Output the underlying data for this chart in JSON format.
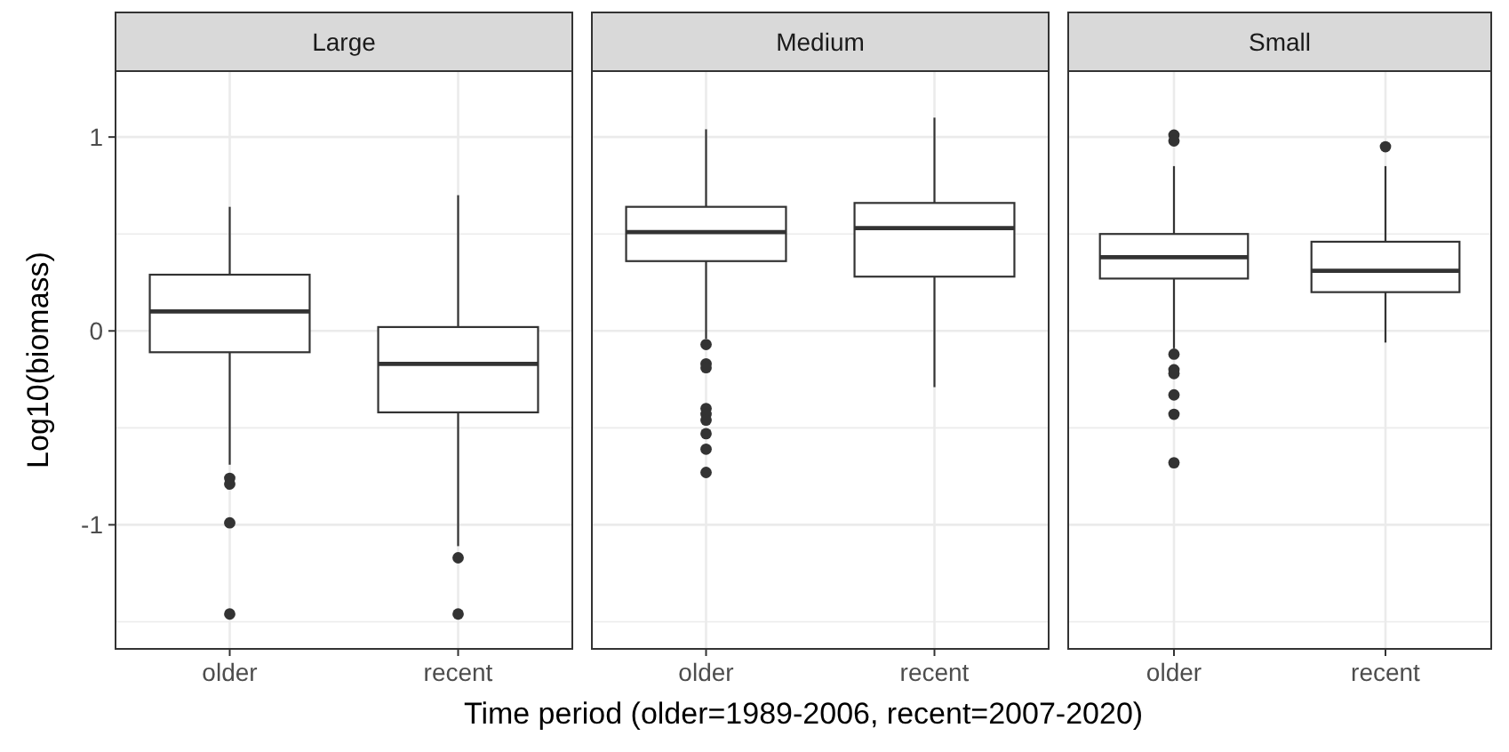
{
  "chart_data": [
    {
      "type": "box",
      "title": "Large",
      "ylabel": "Log10(biomass)",
      "categories": [
        "older",
        "recent"
      ],
      "ylim": [
        -1.64,
        1.34
      ],
      "yticks": [
        {
          "value": -1.5,
          "label": null
        },
        -1,
        {
          "value": -0.5,
          "label": null
        },
        0,
        {
          "value": 0.5,
          "label": null
        },
        1
      ],
      "grid": true,
      "boxes": [
        {
          "low": -0.69,
          "q1": -0.11,
          "median": 0.1,
          "q3": 0.29,
          "high": 0.64,
          "outliers": [
            -0.76,
            -0.79,
            -0.99,
            -1.46
          ]
        },
        {
          "low": -1.11,
          "q1": -0.42,
          "median": -0.17,
          "q3": 0.02,
          "high": 0.7,
          "outliers": [
            -1.17,
            -1.46
          ]
        }
      ]
    },
    {
      "type": "box",
      "title": "Medium",
      "xlabel": "Time period (older=1989-2006, recent=2007-2020)",
      "categories": [
        "older",
        "recent"
      ],
      "ylim": [
        -1.64,
        1.34
      ],
      "yticks": [
        {
          "value": -1.5,
          "label": null
        },
        -1,
        {
          "value": -0.5,
          "label": null
        },
        0,
        {
          "value": 0.5,
          "label": null
        },
        1
      ],
      "grid": true,
      "tick_labels": "x",
      "boxes": [
        {
          "low": -0.04,
          "q1": 0.36,
          "median": 0.51,
          "q3": 0.64,
          "high": 1.04,
          "outliers": [
            -0.07,
            -0.17,
            -0.19,
            -0.4,
            -0.43,
            -0.46,
            -0.53,
            -0.61,
            -0.73
          ]
        },
        {
          "low": -0.29,
          "q1": 0.28,
          "median": 0.53,
          "q3": 0.66,
          "high": 1.1
        }
      ]
    },
    {
      "type": "box",
      "title": "Small",
      "categories": [
        "older",
        "recent"
      ],
      "ylim": [
        -1.64,
        1.34
      ],
      "yticks": [
        {
          "value": -1.5,
          "label": null
        },
        -1,
        {
          "value": -0.5,
          "label": null
        },
        0,
        {
          "value": 0.5,
          "label": null
        },
        1
      ],
      "grid": true,
      "tick_labels": "x",
      "boxes": [
        {
          "low": -0.09,
          "q1": 0.27,
          "median": 0.38,
          "q3": 0.5,
          "high": 0.85,
          "outliers": [
            1.01,
            0.98,
            -0.12,
            -0.2,
            -0.22,
            -0.33,
            -0.43,
            -0.68
          ]
        },
        {
          "low": -0.06,
          "q1": 0.2,
          "median": 0.31,
          "q3": 0.46,
          "high": 0.85,
          "outliers": [
            0.95
          ]
        }
      ]
    }
  ]
}
